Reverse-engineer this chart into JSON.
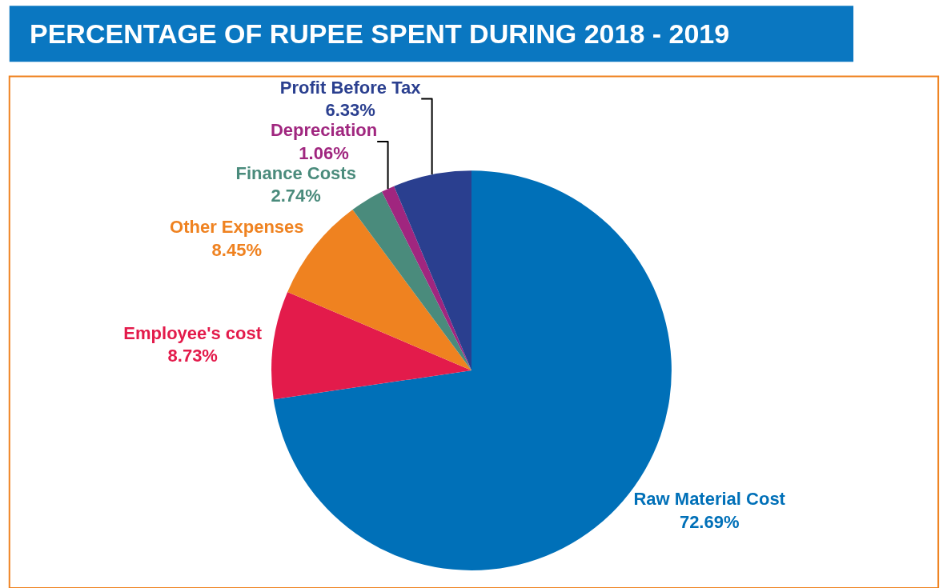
{
  "chart_data": {
    "type": "pie",
    "title": "PERCENTAGE OF RUPEE SPENT DURING 2018 - 2019",
    "categories": [
      "Raw Material Cost",
      "Employee's cost",
      "Other Expenses",
      "Finance Costs",
      "Depreciation",
      "Profit Before Tax"
    ],
    "values": [
      72.69,
      8.73,
      8.45,
      2.74,
      1.06,
      6.33
    ],
    "value_labels": [
      "72.69%",
      "8.73%",
      "8.45%",
      "2.74%",
      "1.06%",
      "6.33%"
    ],
    "colors": [
      "#0070b8",
      "#e31b4b",
      "#ef8220",
      "#4a8b7c",
      "#a0267f",
      "#2a3f8f"
    ],
    "legend": false
  }
}
